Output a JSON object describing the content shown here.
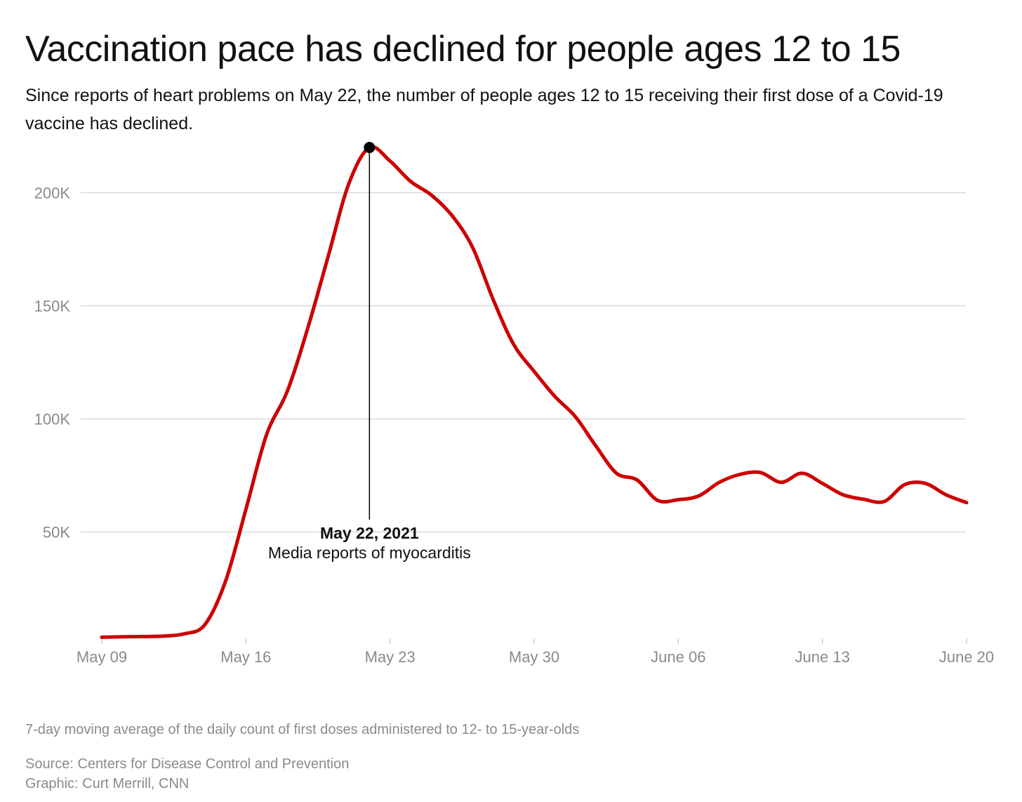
{
  "header": {
    "title": "Vaccination pace has declined for people ages 12 to 15",
    "subtitle": "Since reports of heart problems on May 22, the number of people ages 12 to 15 receiving their first dose of a Covid-19 vaccine has declined."
  },
  "footer": {
    "note": "7-day moving average of the daily count of first doses administered to 12- to 15-year-olds",
    "source": "Source: Centers for Disease Control and Prevention",
    "graphic": "Graphic: Curt Merrill, CNN"
  },
  "colors": {
    "line": "#cc0000",
    "grid": "#cccccc",
    "axis_text": "#8a8a8a",
    "annotation": "#000000"
  },
  "chart_data": {
    "type": "line",
    "xlabel": "",
    "ylabel": "",
    "grid": true,
    "ylim": [
      3000,
      220000
    ],
    "xlim": [
      "2021-05-09",
      "2021-06-20"
    ],
    "y_ticks": [
      {
        "value": 50000,
        "label": "50K"
      },
      {
        "value": 100000,
        "label": "100K"
      },
      {
        "value": 150000,
        "label": "150K"
      },
      {
        "value": 200000,
        "label": "200K"
      }
    ],
    "x_ticks": [
      {
        "date": "2021-05-09",
        "label": "May 09"
      },
      {
        "date": "2021-05-16",
        "label": "May 16"
      },
      {
        "date": "2021-05-23",
        "label": "May 23"
      },
      {
        "date": "2021-05-30",
        "label": "May 30"
      },
      {
        "date": "2021-06-06",
        "label": "June 06"
      },
      {
        "date": "2021-06-13",
        "label": "June 13"
      },
      {
        "date": "2021-06-20",
        "label": "June 20"
      }
    ],
    "series": [
      {
        "points": [
          {
            "x": "2021-05-09",
            "y": 3500
          },
          {
            "x": "2021-05-10",
            "y": 3700
          },
          {
            "x": "2021-05-11",
            "y": 3800
          },
          {
            "x": "2021-05-12",
            "y": 4000
          },
          {
            "x": "2021-05-13",
            "y": 5000
          },
          {
            "x": "2021-05-14",
            "y": 9000
          },
          {
            "x": "2021-05-15",
            "y": 28000
          },
          {
            "x": "2021-05-16",
            "y": 60000
          },
          {
            "x": "2021-05-17",
            "y": 93000
          },
          {
            "x": "2021-05-18",
            "y": 112000
          },
          {
            "x": "2021-05-19",
            "y": 140000
          },
          {
            "x": "2021-05-20",
            "y": 172000
          },
          {
            "x": "2021-05-21",
            "y": 204000
          },
          {
            "x": "2021-05-22",
            "y": 220000
          },
          {
            "x": "2021-05-23",
            "y": 214000
          },
          {
            "x": "2021-05-24",
            "y": 205000
          },
          {
            "x": "2021-05-25",
            "y": 199000
          },
          {
            "x": "2021-05-26",
            "y": 190000
          },
          {
            "x": "2021-05-27",
            "y": 176000
          },
          {
            "x": "2021-05-28",
            "y": 153000
          },
          {
            "x": "2021-05-29",
            "y": 133000
          },
          {
            "x": "2021-05-30",
            "y": 121000
          },
          {
            "x": "2021-05-31",
            "y": 110000
          },
          {
            "x": "2021-06-01",
            "y": 101000
          },
          {
            "x": "2021-06-02",
            "y": 88000
          },
          {
            "x": "2021-06-03",
            "y": 76000
          },
          {
            "x": "2021-06-04",
            "y": 73000
          },
          {
            "x": "2021-06-05",
            "y": 64000
          },
          {
            "x": "2021-06-06",
            "y": 64300
          },
          {
            "x": "2021-06-07",
            "y": 66000
          },
          {
            "x": "2021-06-08",
            "y": 72000
          },
          {
            "x": "2021-06-09",
            "y": 75500
          },
          {
            "x": "2021-06-10",
            "y": 76300
          },
          {
            "x": "2021-06-11",
            "y": 72000
          },
          {
            "x": "2021-06-12",
            "y": 76000
          },
          {
            "x": "2021-06-13",
            "y": 71500
          },
          {
            "x": "2021-06-14",
            "y": 66500
          },
          {
            "x": "2021-06-15",
            "y": 64500
          },
          {
            "x": "2021-06-16",
            "y": 63500
          },
          {
            "x": "2021-06-17",
            "y": 71000
          },
          {
            "x": "2021-06-18",
            "y": 71500
          },
          {
            "x": "2021-06-19",
            "y": 66500
          },
          {
            "x": "2021-06-20",
            "y": 63000
          }
        ]
      }
    ],
    "annotations": [
      {
        "x": "2021-05-22",
        "y": 220000,
        "title": "May 22, 2021",
        "text": "Media reports of myocarditis"
      }
    ]
  }
}
